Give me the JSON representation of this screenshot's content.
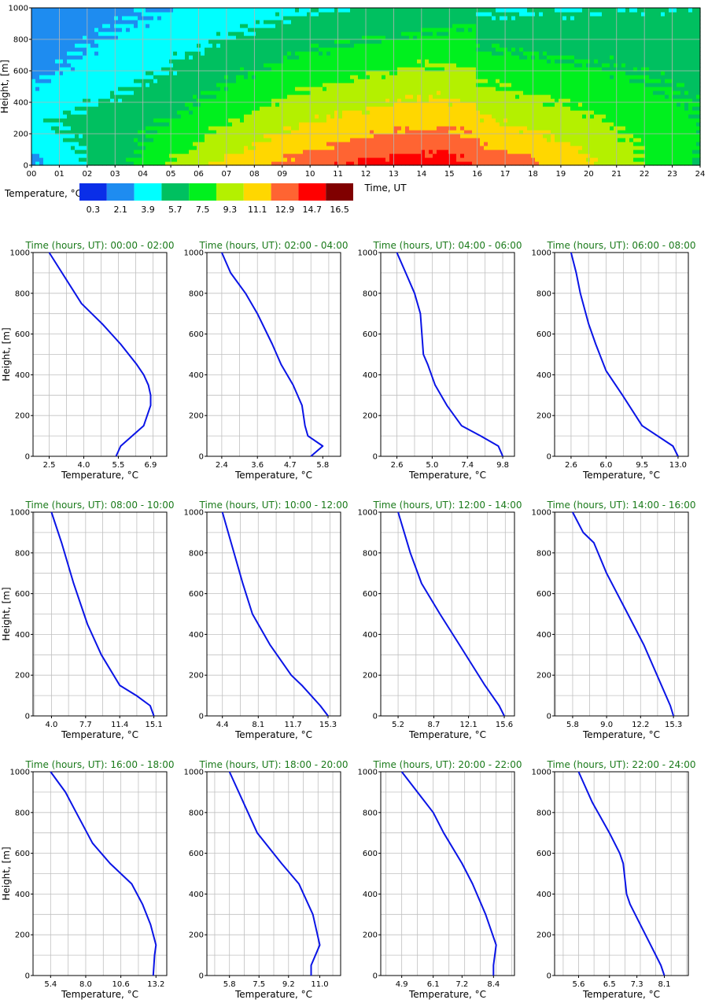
{
  "heatmap": {
    "ylabel": "Height, [m]",
    "xlabel": "Time, UT",
    "x_ticks": [
      "00",
      "01",
      "02",
      "03",
      "04",
      "05",
      "06",
      "07",
      "08",
      "09",
      "10",
      "11",
      "12",
      "13",
      "14",
      "15",
      "16",
      "17",
      "18",
      "19",
      "20",
      "21",
      "22",
      "23",
      "24"
    ],
    "y_ticks": [
      "0",
      "200",
      "400",
      "600",
      "800",
      "1000"
    ],
    "legend_label": "Temperature, °C",
    "legend_values": [
      "0.3",
      "2.1",
      "3.9",
      "5.7",
      "7.5",
      "9.3",
      "11.1",
      "12.9",
      "14.7",
      "16.5"
    ],
    "colors": [
      "#0a2ee8",
      "#1e8cf0",
      "#00ffff",
      "#00c060",
      "#00f01e",
      "#b4f000",
      "#ffd700",
      "#ff6432",
      "#ff0000",
      "#800000"
    ]
  },
  "panel_ylabel": "Height, [m]",
  "panel_xlabel": "Temperature, °C",
  "panel_y_ticks": [
    "0",
    "200",
    "400",
    "600",
    "800",
    "1000"
  ],
  "line_color": "#0a14e6",
  "chart_data": [
    {
      "type": "heatmap",
      "xlabel": "Time, UT",
      "ylabel": "Height, [m]",
      "xlim": [
        0,
        24
      ],
      "ylim": [
        0,
        1000
      ],
      "colorbar_label": "Temperature, °C",
      "colorbar_bins": [
        0.3,
        2.1,
        3.9,
        5.7,
        7.5,
        9.3,
        11.1,
        12.9,
        14.7,
        16.5
      ]
    },
    {
      "type": "line",
      "title": "Time (hours, UT): 00:00 - 02:00",
      "xlabel": "Temperature, °C",
      "ylabel": "Height, [m]",
      "xlim": [
        1.8,
        7.6
      ],
      "ylim": [
        0,
        1000
      ],
      "x_ticks": [
        "2.5",
        "4.0",
        "5.5",
        "6.9"
      ],
      "x_tick_values": [
        2.5,
        4.0,
        5.5,
        6.9
      ],
      "points": [
        [
          5.4,
          0
        ],
        [
          5.6,
          50
        ],
        [
          6.1,
          100
        ],
        [
          6.6,
          150
        ],
        [
          6.9,
          250
        ],
        [
          6.9,
          300
        ],
        [
          6.8,
          350
        ],
        [
          6.6,
          400
        ],
        [
          6.3,
          450
        ],
        [
          5.6,
          550
        ],
        [
          4.8,
          650
        ],
        [
          3.9,
          750
        ],
        [
          2.5,
          1000
        ]
      ]
    },
    {
      "type": "line",
      "title": "Time (hours, UT): 02:00 - 04:00",
      "xlabel": "Temperature, °C",
      "ylabel": "Height, [m]",
      "xlim": [
        1.9,
        6.4
      ],
      "ylim": [
        0,
        1000
      ],
      "x_ticks": [
        "2.4",
        "3.6",
        "4.7",
        "5.8"
      ],
      "x_tick_values": [
        2.4,
        3.6,
        4.7,
        5.8
      ],
      "points": [
        [
          5.4,
          0
        ],
        [
          5.8,
          50
        ],
        [
          5.3,
          100
        ],
        [
          5.2,
          150
        ],
        [
          5.1,
          250
        ],
        [
          4.8,
          350
        ],
        [
          4.4,
          450
        ],
        [
          4.1,
          550
        ],
        [
          3.6,
          700
        ],
        [
          3.2,
          800
        ],
        [
          2.7,
          900
        ],
        [
          2.4,
          1000
        ]
      ]
    },
    {
      "type": "line",
      "title": "Time (hours, UT): 04:00 - 06:00",
      "xlabel": "Temperature, °C",
      "ylabel": "Height, [m]",
      "xlim": [
        1.5,
        10.6
      ],
      "ylim": [
        0,
        1000
      ],
      "x_ticks": [
        "2.6",
        "5.0",
        "7.4",
        "9.8"
      ],
      "x_tick_values": [
        2.6,
        5.0,
        7.4,
        9.8
      ],
      "points": [
        [
          9.8,
          0
        ],
        [
          9.5,
          50
        ],
        [
          8.3,
          100
        ],
        [
          7.0,
          150
        ],
        [
          6.0,
          250
        ],
        [
          5.2,
          350
        ],
        [
          4.7,
          450
        ],
        [
          4.4,
          500
        ],
        [
          4.2,
          700
        ],
        [
          3.8,
          800
        ],
        [
          3.2,
          900
        ],
        [
          2.6,
          1000
        ]
      ]
    },
    {
      "type": "line",
      "title": "Time (hours, UT): 06:00 - 08:00",
      "xlabel": "Temperature, °C",
      "ylabel": "Height, [m]",
      "xlim": [
        1.0,
        14.0
      ],
      "ylim": [
        0,
        1000
      ],
      "x_ticks": [
        "2.6",
        "6.0",
        "9.5",
        "13.0"
      ],
      "x_tick_values": [
        2.6,
        6.0,
        9.5,
        13.0
      ],
      "points": [
        [
          13.0,
          0
        ],
        [
          12.5,
          50
        ],
        [
          9.5,
          150
        ],
        [
          7.6,
          300
        ],
        [
          6.0,
          420
        ],
        [
          5.0,
          550
        ],
        [
          4.3,
          650
        ],
        [
          3.5,
          800
        ],
        [
          3.1,
          900
        ],
        [
          2.6,
          1000
        ]
      ]
    },
    {
      "type": "line",
      "title": "Time (hours, UT): 08:00 - 10:00",
      "xlabel": "Temperature, °C",
      "ylabel": "Height, [m]",
      "xlim": [
        2.0,
        16.5
      ],
      "ylim": [
        0,
        1000
      ],
      "x_ticks": [
        "4.0",
        "7.7",
        "11.4",
        "15.1"
      ],
      "x_tick_values": [
        4.0,
        7.7,
        11.4,
        15.1
      ],
      "points": [
        [
          15.1,
          0
        ],
        [
          14.7,
          50
        ],
        [
          13.2,
          100
        ],
        [
          11.4,
          150
        ],
        [
          9.4,
          300
        ],
        [
          7.9,
          450
        ],
        [
          6.4,
          650
        ],
        [
          5.1,
          850
        ],
        [
          4.0,
          1000
        ]
      ]
    },
    {
      "type": "line",
      "title": "Time (hours, UT): 10:00 - 12:00",
      "xlabel": "Temperature, °C",
      "ylabel": "Height, [m]",
      "xlim": [
        2.8,
        16.6
      ],
      "ylim": [
        0,
        1000
      ],
      "x_ticks": [
        "4.4",
        "8.1",
        "11.7",
        "15.3"
      ],
      "x_tick_values": [
        4.4,
        8.1,
        11.7,
        15.3
      ],
      "points": [
        [
          15.3,
          0
        ],
        [
          14.5,
          50
        ],
        [
          12.6,
          150
        ],
        [
          11.5,
          200
        ],
        [
          9.3,
          350
        ],
        [
          7.5,
          500
        ],
        [
          6.5,
          650
        ],
        [
          5.3,
          850
        ],
        [
          4.4,
          1000
        ]
      ]
    },
    {
      "type": "line",
      "title": "Time (hours, UT): 12:00 - 14:00",
      "xlabel": "Temperature, °C",
      "ylabel": "Height, [m]",
      "xlim": [
        3.5,
        16.6
      ],
      "ylim": [
        0,
        1000
      ],
      "x_ticks": [
        "5.2",
        "8.7",
        "12.1",
        "15.6"
      ],
      "x_tick_values": [
        5.2,
        8.7,
        12.1,
        15.6
      ],
      "points": [
        [
          15.6,
          0
        ],
        [
          15.1,
          50
        ],
        [
          13.7,
          150
        ],
        [
          11.2,
          350
        ],
        [
          9.3,
          500
        ],
        [
          7.5,
          650
        ],
        [
          6.4,
          800
        ],
        [
          5.2,
          1000
        ]
      ]
    },
    {
      "type": "line",
      "title": "Time (hours, UT): 14:00 - 16:00",
      "xlabel": "Temperature, °C",
      "ylabel": "Height, [m]",
      "xlim": [
        4.1,
        16.7
      ],
      "ylim": [
        0,
        1000
      ],
      "x_ticks": [
        "5.8",
        "9.0",
        "12.2",
        "15.3"
      ],
      "x_tick_values": [
        5.8,
        9.0,
        12.2,
        15.3
      ],
      "points": [
        [
          15.3,
          0
        ],
        [
          15.0,
          50
        ],
        [
          12.5,
          350
        ],
        [
          11.0,
          500
        ],
        [
          9.0,
          700
        ],
        [
          7.8,
          850
        ],
        [
          6.8,
          900
        ],
        [
          5.8,
          1000
        ]
      ]
    },
    {
      "type": "line",
      "title": "Time (hours, UT): 16:00 - 18:00",
      "xlabel": "Temperature, °C",
      "ylabel": "Height, [m]",
      "xlim": [
        4.1,
        14.0
      ],
      "ylim": [
        0,
        1000
      ],
      "x_ticks": [
        "5.4",
        "8.0",
        "10.6",
        "13.2"
      ],
      "x_tick_values": [
        5.4,
        8.0,
        10.6,
        13.2
      ],
      "points": [
        [
          13.0,
          0
        ],
        [
          13.1,
          100
        ],
        [
          13.2,
          150
        ],
        [
          12.8,
          250
        ],
        [
          12.2,
          350
        ],
        [
          11.4,
          450
        ],
        [
          9.8,
          550
        ],
        [
          8.5,
          650
        ],
        [
          7.3,
          800
        ],
        [
          6.5,
          900
        ],
        [
          5.4,
          1000
        ]
      ]
    },
    {
      "type": "line",
      "title": "Time (hours, UT): 18:00 - 20:00",
      "xlabel": "Temperature, °C",
      "ylabel": "Height, [m]",
      "xlim": [
        4.5,
        12.2
      ],
      "ylim": [
        0,
        1000
      ],
      "x_ticks": [
        "5.8",
        "7.5",
        "9.2",
        "11.0"
      ],
      "x_tick_values": [
        5.8,
        7.5,
        9.2,
        11.0
      ],
      "points": [
        [
          10.5,
          0
        ],
        [
          10.5,
          50
        ],
        [
          11.0,
          150
        ],
        [
          10.6,
          300
        ],
        [
          9.8,
          450
        ],
        [
          8.8,
          550
        ],
        [
          7.4,
          700
        ],
        [
          6.6,
          850
        ],
        [
          5.8,
          1000
        ]
      ]
    },
    {
      "type": "line",
      "title": "Time (hours, UT): 20:00 - 22:00",
      "xlabel": "Temperature, °C",
      "ylabel": "Height, [m]",
      "xlim": [
        4.1,
        9.2
      ],
      "ylim": [
        0,
        1000
      ],
      "x_ticks": [
        "4.9",
        "6.1",
        "7.2",
        "8.4"
      ],
      "x_tick_values": [
        4.9,
        6.1,
        7.2,
        8.4
      ],
      "points": [
        [
          8.4,
          0
        ],
        [
          8.4,
          50
        ],
        [
          8.5,
          150
        ],
        [
          8.1,
          300
        ],
        [
          7.6,
          450
        ],
        [
          7.2,
          550
        ],
        [
          6.5,
          700
        ],
        [
          6.1,
          800
        ],
        [
          4.9,
          1000
        ]
      ]
    },
    {
      "type": "line",
      "title": "Time (hours, UT): 22:00 - 24:00",
      "xlabel": "Temperature, °C",
      "ylabel": "Height, [m]",
      "xlim": [
        4.9,
        8.8
      ],
      "ylim": [
        0,
        1000
      ],
      "x_ticks": [
        "5.6",
        "6.5",
        "7.3",
        "8.1"
      ],
      "x_tick_values": [
        5.6,
        6.5,
        7.3,
        8.1
      ],
      "points": [
        [
          8.1,
          0
        ],
        [
          8.0,
          50
        ],
        [
          7.7,
          150
        ],
        [
          7.4,
          250
        ],
        [
          7.1,
          350
        ],
        [
          7.0,
          400
        ],
        [
          6.9,
          550
        ],
        [
          6.8,
          600
        ],
        [
          6.5,
          700
        ],
        [
          6.0,
          850
        ],
        [
          5.6,
          1000
        ]
      ]
    }
  ]
}
